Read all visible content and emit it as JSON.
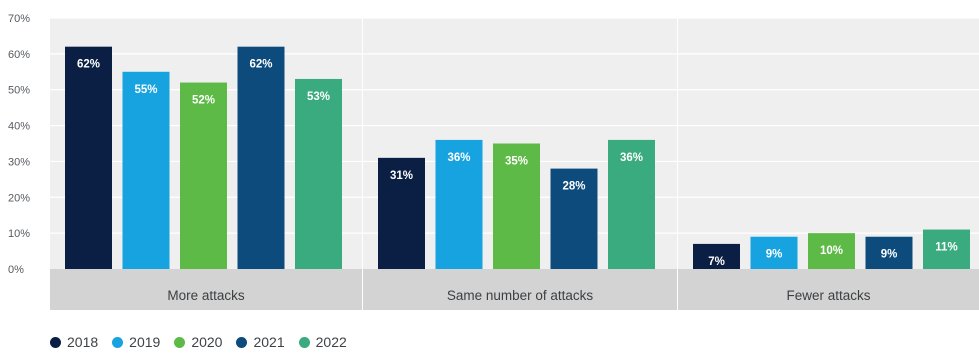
{
  "chart_data": {
    "type": "bar",
    "categories": [
      "More attacks",
      "Same number of attacks",
      "Fewer attacks"
    ],
    "series": [
      {
        "name": "2018",
        "color": "#0b1f45",
        "values": [
          62,
          31,
          7
        ]
      },
      {
        "name": "2019",
        "color": "#16a3e0",
        "values": [
          55,
          36,
          9
        ]
      },
      {
        "name": "2020",
        "color": "#5dba47",
        "values": [
          52,
          35,
          10
        ]
      },
      {
        "name": "2021",
        "color": "#0c4b7c",
        "values": [
          62,
          28,
          9
        ]
      },
      {
        "name": "2022",
        "color": "#3aaa7f",
        "values": [
          53,
          36,
          11
        ]
      }
    ],
    "data_labels": [
      [
        "62%",
        "31%",
        "7%"
      ],
      [
        "55%",
        "36%",
        "9%"
      ],
      [
        "52%",
        "35%",
        "10%"
      ],
      [
        "62%",
        "28%",
        "9%"
      ],
      [
        "53%",
        "36%",
        "11%"
      ]
    ],
    "y_ticks": [
      "0%",
      "10%",
      "20%",
      "30%",
      "40%",
      "50%",
      "60%",
      "70%"
    ],
    "ylim": [
      0,
      70
    ],
    "grid": true,
    "legend": "bottom-left",
    "title": "",
    "xlabel": "",
    "ylabel": ""
  }
}
